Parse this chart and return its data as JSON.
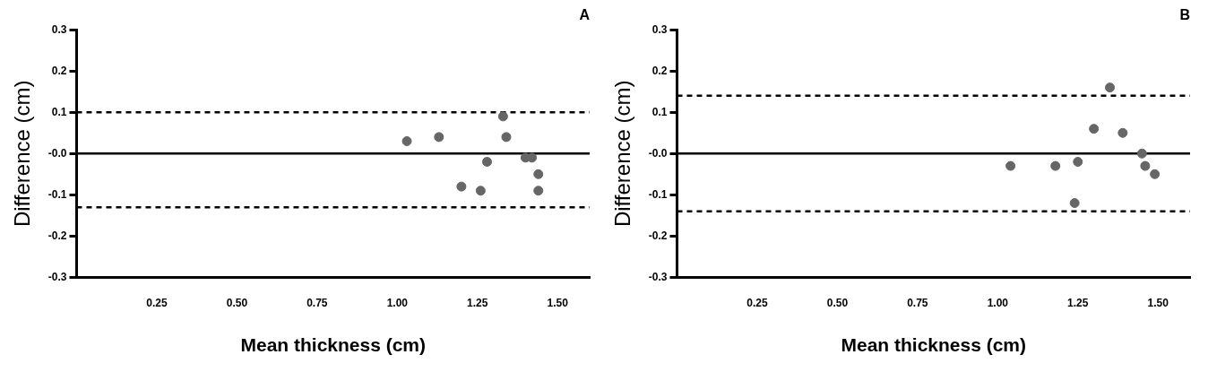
{
  "chart_data": [
    {
      "type": "scatter",
      "title": "A",
      "xlabel": "Mean thickness (cm)",
      "ylabel": "Difference (cm)",
      "color": "#666666",
      "marker": "circle",
      "grid": false,
      "x": [
        1.03,
        1.13,
        1.33,
        1.34,
        1.28,
        1.2,
        1.26,
        1.4,
        1.42,
        1.44,
        1.44
      ],
      "values": [
        0.03,
        0.04,
        0.09,
        0.04,
        -0.02,
        -0.08,
        -0.09,
        -0.01,
        -0.01,
        -0.05,
        -0.09
      ],
      "xlim": [
        0,
        1.6
      ],
      "xticks": [
        0.25,
        {
          "value": 0.5,
          "label": "0.50"
        },
        0.75,
        {
          "value": 1,
          "label": "1.00"
        },
        1.25,
        {
          "value": 1.5,
          "label": "1.50"
        }
      ],
      "ylim": [
        -0.3,
        0.3
      ],
      "yticks": [
        -0.3,
        -0.2,
        -0.1,
        {
          "value": 0,
          "label": "-0.0"
        },
        0.1,
        0.2,
        0.3
      ],
      "ref_lines": [
        {
          "axis": "y",
          "value": 0,
          "line_style": "solid"
        },
        {
          "axis": "y",
          "value": 0.1,
          "line_style": "dashed"
        },
        {
          "axis": "y",
          "value": -0.13,
          "line_style": "dashed"
        }
      ]
    },
    {
      "type": "scatter",
      "title": "B",
      "xlabel": "Mean thickness (cm)",
      "ylabel": "Difference (cm)",
      "color": "#666666",
      "marker": "circle",
      "grid": false,
      "x": [
        1.04,
        1.18,
        1.25,
        1.24,
        1.3,
        1.35,
        1.39,
        1.45,
        1.46,
        1.49
      ],
      "values": [
        -0.03,
        -0.03,
        -0.02,
        -0.12,
        0.06,
        0.16,
        0.05,
        0,
        -0.03,
        -0.05
      ],
      "xlim": [
        0,
        1.6
      ],
      "xticks": [
        0.25,
        {
          "value": 0.5,
          "label": "0.50"
        },
        0.75,
        {
          "value": 1,
          "label": "1.00"
        },
        1.25,
        {
          "value": 1.5,
          "label": "1.50"
        }
      ],
      "ylim": [
        -0.3,
        0.3
      ],
      "yticks": [
        -0.3,
        -0.2,
        -0.1,
        {
          "value": 0,
          "label": "-0.0"
        },
        0.1,
        0.2,
        0.3
      ],
      "ref_lines": [
        {
          "axis": "y",
          "value": 0,
          "line_style": "solid"
        },
        {
          "axis": "y",
          "value": 0.14,
          "line_style": "dashed"
        },
        {
          "axis": "y",
          "value": -0.14,
          "line_style": "dashed"
        }
      ]
    }
  ]
}
